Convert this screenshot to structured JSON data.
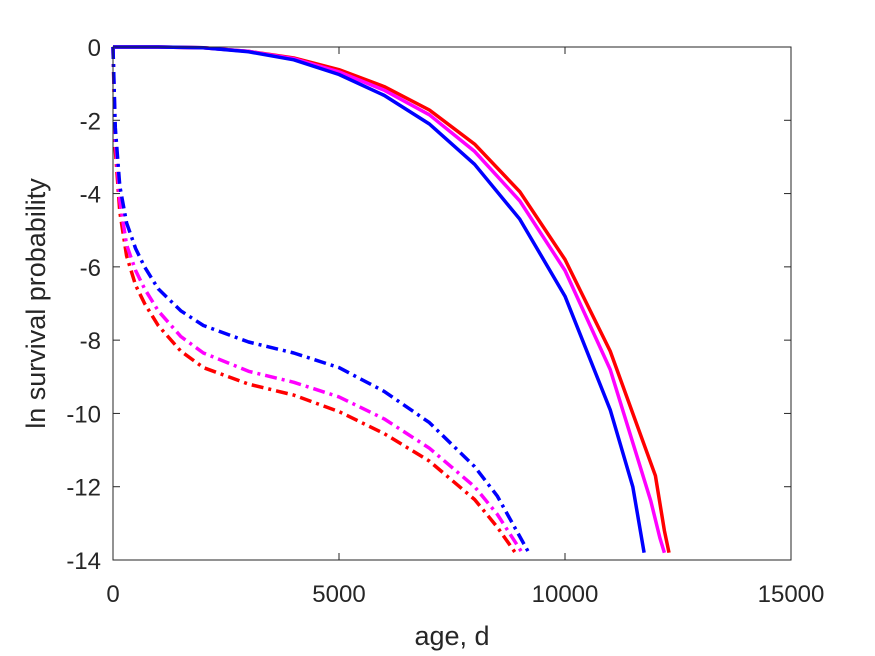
{
  "chart_data": {
    "type": "line",
    "xlabel": "age, d",
    "ylabel": "ln survival probability",
    "xlim": [
      0,
      15000
    ],
    "ylim": [
      -14,
      0
    ],
    "xticks": [
      0,
      5000,
      10000,
      15000
    ],
    "yticks": [
      0,
      -2,
      -4,
      -6,
      -8,
      -10,
      -12,
      -14
    ],
    "grid": false,
    "legend": "none",
    "series": [
      {
        "color": "#ff0000",
        "style": "solid",
        "x": [
          0,
          1000,
          2000,
          3000,
          4000,
          5000,
          6000,
          7000,
          8000,
          9000,
          10000,
          11000,
          12000,
          12200,
          12300
        ],
        "y": [
          0,
          0,
          -0.02,
          -0.12,
          -0.3,
          -0.62,
          -1.08,
          -1.72,
          -2.65,
          -3.95,
          -5.8,
          -8.3,
          -11.7,
          -13.2,
          -13.8
        ]
      },
      {
        "color": "#ff00ff",
        "style": "solid",
        "x": [
          0,
          1000,
          2000,
          3000,
          4000,
          5000,
          6000,
          7000,
          8000,
          9000,
          10000,
          11000,
          11900,
          12100,
          12200
        ],
        "y": [
          0,
          0,
          -0.02,
          -0.12,
          -0.32,
          -0.68,
          -1.18,
          -1.85,
          -2.85,
          -4.2,
          -6.1,
          -8.8,
          -12.4,
          -13.4,
          -13.8
        ]
      },
      {
        "color": "#0000ff",
        "style": "solid",
        "x": [
          0,
          1000,
          2000,
          3000,
          4000,
          5000,
          6000,
          7000,
          8000,
          9000,
          10000,
          11000,
          11500,
          11750
        ],
        "y": [
          0,
          0,
          -0.02,
          -0.13,
          -0.35,
          -0.75,
          -1.32,
          -2.1,
          -3.2,
          -4.7,
          -6.8,
          -9.9,
          -12,
          -13.8
        ]
      },
      {
        "color": "#ff0000",
        "style": "dashdot",
        "x": [
          0,
          50,
          150,
          300,
          500,
          700,
          1000,
          1500,
          2000,
          3000,
          4000,
          5000,
          6000,
          7000,
          8000,
          8500,
          8900
        ],
        "y": [
          0,
          -2.8,
          -4.5,
          -5.7,
          -6.5,
          -7.0,
          -7.6,
          -8.3,
          -8.75,
          -9.2,
          -9.5,
          -9.95,
          -10.55,
          -11.3,
          -12.35,
          -13.1,
          -13.8
        ]
      },
      {
        "color": "#ff00ff",
        "style": "dashdot",
        "x": [
          0,
          50,
          150,
          300,
          500,
          700,
          1000,
          1500,
          2000,
          3000,
          4000,
          5000,
          6000,
          7000,
          8000,
          8500,
          9050
        ],
        "y": [
          0,
          -2.5,
          -4.2,
          -5.4,
          -6.1,
          -6.6,
          -7.2,
          -7.9,
          -8.35,
          -8.85,
          -9.15,
          -9.55,
          -10.15,
          -10.95,
          -12.0,
          -12.75,
          -13.8
        ]
      },
      {
        "color": "#0000ff",
        "style": "dashdot",
        "x": [
          0,
          50,
          150,
          300,
          500,
          700,
          1000,
          1500,
          2000,
          3000,
          4000,
          5000,
          6000,
          7000,
          8000,
          8500,
          9200
        ],
        "y": [
          0,
          -2.2,
          -3.8,
          -4.8,
          -5.5,
          -6.0,
          -6.6,
          -7.2,
          -7.6,
          -8.05,
          -8.35,
          -8.75,
          -9.4,
          -10.25,
          -11.45,
          -12.25,
          -13.8
        ]
      }
    ]
  }
}
